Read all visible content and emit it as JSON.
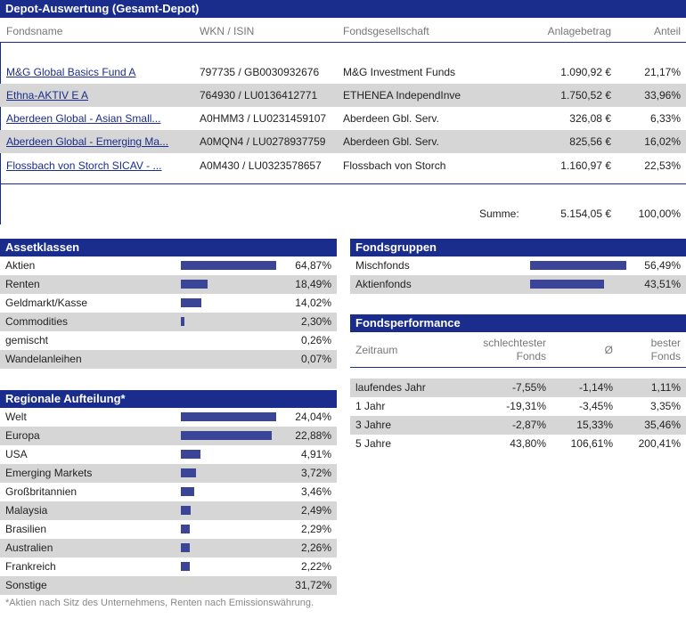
{
  "depot": {
    "title": "Depot-Auswertung (Gesamt-Depot)",
    "columns": {
      "fondsname": "Fondsname",
      "wkn": "WKN / ISIN",
      "gesellschaft": "Fondsgesellschaft",
      "anlagebetrag": "Anlagebetrag",
      "anteil": "Anteil"
    },
    "rows": [
      {
        "name": "M&G Global Basics Fund A",
        "wkn": "797735 / GB0030932676",
        "gesellschaft": "M&G Investment Funds",
        "betrag": "1.090,92 €",
        "anteil": "21,17%"
      },
      {
        "name": "Ethna-AKTIV E A",
        "wkn": "764930 / LU0136412771",
        "gesellschaft": "ETHENEA IndependInve",
        "betrag": "1.750,52 €",
        "anteil": "33,96%"
      },
      {
        "name": "Aberdeen Global - Asian Small...",
        "wkn": "A0HMM3 / LU0231459107",
        "gesellschaft": "Aberdeen Gbl. Serv.",
        "betrag": "326,08 €",
        "anteil": "6,33%"
      },
      {
        "name": "Aberdeen Global - Emerging Ma...",
        "wkn": "A0MQN4 / LU0278937759",
        "gesellschaft": "Aberdeen Gbl. Serv.",
        "betrag": "825,56 €",
        "anteil": "16,02%"
      },
      {
        "name": "Flossbach von Storch SICAV - ...",
        "wkn": "A0M430 / LU0323578657",
        "gesellschaft": "Flossbach von Storch",
        "betrag": "1.160,97 €",
        "anteil": "22,53%"
      }
    ],
    "summe_label": "Summe:",
    "summe_betrag": "5.154,05 €",
    "summe_anteil": "100,00%"
  },
  "assetklassen": {
    "title": "Assetklassen",
    "rows": [
      {
        "label": "Aktien",
        "value": "64,87%",
        "pct": 64.87
      },
      {
        "label": "Renten",
        "value": "18,49%",
        "pct": 18.49
      },
      {
        "label": "Geldmarkt/Kasse",
        "value": "14,02%",
        "pct": 14.02
      },
      {
        "label": "Commodities",
        "value": "2,30%",
        "pct": 2.3
      },
      {
        "label": "gemischt",
        "value": "0,26%",
        "pct": 0.26
      },
      {
        "label": "Wandelanleihen",
        "value": "0,07%",
        "pct": 0.07
      }
    ]
  },
  "regionale": {
    "title": "Regionale Aufteilung*",
    "rows": [
      {
        "label": "Welt",
        "value": "24,04%",
        "pct": 24.04
      },
      {
        "label": "Europa",
        "value": "22,88%",
        "pct": 22.88
      },
      {
        "label": "USA",
        "value": "4,91%",
        "pct": 4.91
      },
      {
        "label": "Emerging Markets",
        "value": "3,72%",
        "pct": 3.72
      },
      {
        "label": "Großbritannien",
        "value": "3,46%",
        "pct": 3.46
      },
      {
        "label": "Malaysia",
        "value": "2,49%",
        "pct": 2.49
      },
      {
        "label": "Brasilien",
        "value": "2,29%",
        "pct": 2.29
      },
      {
        "label": "Australien",
        "value": "2,26%",
        "pct": 2.26
      },
      {
        "label": "Frankreich",
        "value": "2,22%",
        "pct": 2.22
      },
      {
        "label": "Sonstige",
        "value": "31,72%",
        "pct": 31.72
      }
    ],
    "footnote": "*Aktien nach Sitz des Unternehmens, Renten nach Emissionswährung."
  },
  "fondsgruppen": {
    "title": "Fondsgruppen",
    "rows": [
      {
        "label": "Mischfonds",
        "value": "56,49%",
        "pct": 56.49
      },
      {
        "label": "Aktienfonds",
        "value": "43,51%",
        "pct": 43.51
      }
    ]
  },
  "performance": {
    "title": "Fondsperformance",
    "col_zeitraum": "Zeitraum",
    "col_worst_1": "schlechtester",
    "col_worst_2": "Fonds",
    "col_avg": "Ø",
    "col_best_1": "bester",
    "col_best_2": "Fonds",
    "rows": [
      {
        "zeitraum": "laufendes Jahr",
        "worst": "-7,55%",
        "avg": "-1,14%",
        "best": "1,11%"
      },
      {
        "zeitraum": "1 Jahr",
        "worst": "-19,31%",
        "avg": "-3,45%",
        "best": "3,35%"
      },
      {
        "zeitraum": "3 Jahre",
        "worst": "-2,87%",
        "avg": "15,33%",
        "best": "35,46%"
      },
      {
        "zeitraum": "5 Jahre",
        "worst": "43,80%",
        "avg": "106,61%",
        "best": "200,41%"
      }
    ]
  },
  "colors": {
    "header_bg": "#1a2c8c",
    "bar": "#3a4597",
    "row_alt": "#d6d6d6",
    "link": "#1a2c8c"
  }
}
